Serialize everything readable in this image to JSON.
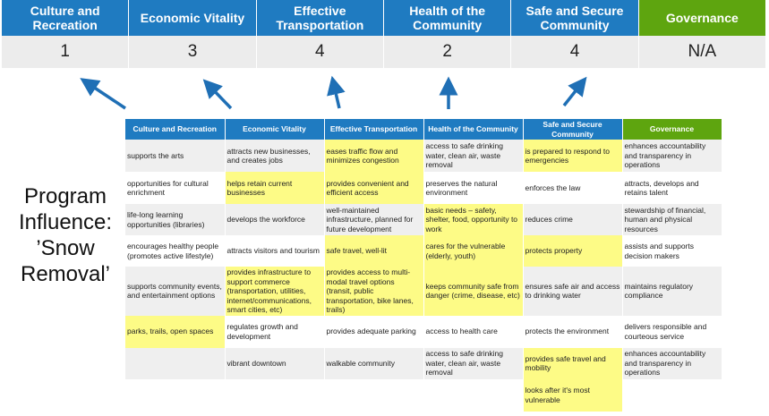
{
  "summary": {
    "columns": [
      {
        "label": "Culture and Recreation",
        "score": "1"
      },
      {
        "label": "Economic Vitality",
        "score": "3"
      },
      {
        "label": "Effective Transportation",
        "score": "4"
      },
      {
        "label": "Health of the Community",
        "score": "2"
      },
      {
        "label": "Safe and Secure Community",
        "score": "4"
      },
      {
        "label": "Governance",
        "score": "N/A"
      }
    ]
  },
  "program_label": "Program Influence: ’Snow Removal’",
  "colors": {
    "header_blue": "#1f7bc1",
    "governance_green": "#5ea50f",
    "highlight_yellow": "#fdfb86",
    "arrow": "#1f6fb5"
  },
  "table": {
    "headers": [
      "Culture and Recreation",
      "Economic Vitality",
      "Effective Transportation",
      "Health of the Community",
      "Safe and Secure Community",
      "Governance"
    ],
    "rows": [
      [
        {
          "t": "supports the arts"
        },
        {
          "t": "attracts new businesses, and creates jobs"
        },
        {
          "t": "eases traffic flow and minimizes congestion",
          "h": true
        },
        {
          "t": "access to safe drinking water, clean air, waste removal"
        },
        {
          "t": "is prepared to respond to emergencies",
          "h": true
        },
        {
          "t": "enhances accountability and transparency in operations"
        }
      ],
      [
        {
          "t": "opportunities for cultural enrichment"
        },
        {
          "t": "helps retain current businesses",
          "h": true
        },
        {
          "t": "provides convenient and efficient access",
          "h": true
        },
        {
          "t": "preserves the natural environment"
        },
        {
          "t": "enforces the law"
        },
        {
          "t": "attracts, develops and retains talent"
        }
      ],
      [
        {
          "t": "life-long learning opportunities (libraries)"
        },
        {
          "t": "develops the workforce"
        },
        {
          "t": "well-maintained infrastructure, planned for future development"
        },
        {
          "t": "basic needs – safety, shelter, food, opportunity to work",
          "h": true
        },
        {
          "t": "reduces crime"
        },
        {
          "t": "stewardship of financial, human and physical resources"
        }
      ],
      [
        {
          "t": "encourages healthy people (promotes active lifestyle)"
        },
        {
          "t": "attracts visitors and tourism"
        },
        {
          "t": "safe travel, well-lit",
          "h": true
        },
        {
          "t": "cares for the vulnerable (elderly, youth)",
          "h": true
        },
        {
          "t": "protects property",
          "h": true
        },
        {
          "t": "assists and supports decision makers"
        }
      ],
      [
        {
          "t": "supports community events, and entertainment options"
        },
        {
          "t": "provides infrastructure to support commerce (transportation, utilities, internet/communications, smart cities, etc)",
          "h": true
        },
        {
          "t": "provides access to multi-modal travel options (transit, public transportation, bike lanes, trails)",
          "h": true
        },
        {
          "t": "keeps community safe from danger (crime, disease, etc)",
          "h": true
        },
        {
          "t": "ensures safe air and access to drinking water"
        },
        {
          "t": "maintains regulatory compliance"
        }
      ],
      [
        {
          "t": "parks, trails, open spaces",
          "h": true
        },
        {
          "t": "regulates growth and development"
        },
        {
          "t": "provides adequate parking"
        },
        {
          "t": "access to health care"
        },
        {
          "t": "protects the environment"
        },
        {
          "t": "delivers responsible and courteous service"
        }
      ],
      [
        {
          "t": ""
        },
        {
          "t": "vibrant downtown"
        },
        {
          "t": "walkable community"
        },
        {
          "t": "access to safe drinking water, clean air, waste removal"
        },
        {
          "t": "provides safe travel and mobility",
          "h": true
        },
        {
          "t": "enhances accountability and transparency in operations"
        }
      ],
      [
        {
          "t": ""
        },
        {
          "t": ""
        },
        {
          "t": ""
        },
        {
          "t": ""
        },
        {
          "t": "looks after it's most vulnerable",
          "h": true
        },
        {
          "t": ""
        }
      ]
    ]
  }
}
